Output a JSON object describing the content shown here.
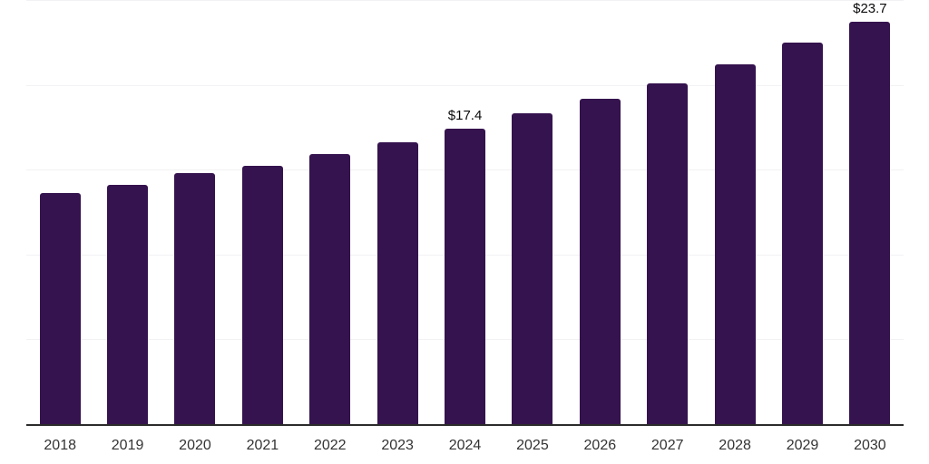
{
  "chart_data": {
    "type": "bar",
    "title": "",
    "xlabel": "",
    "ylabel": "",
    "categories": [
      "2018",
      "2019",
      "2020",
      "2021",
      "2022",
      "2023",
      "2024",
      "2025",
      "2026",
      "2027",
      "2028",
      "2029",
      "2030"
    ],
    "values": [
      13.6,
      14.1,
      14.8,
      15.2,
      15.9,
      16.6,
      17.4,
      18.3,
      19.2,
      20.1,
      21.2,
      22.5,
      23.7
    ],
    "data_labels": [
      "",
      "",
      "",
      "",
      "",
      "",
      "$17.4",
      "",
      "",
      "",
      "",
      "",
      "$23.7"
    ],
    "ylim": [
      0,
      25
    ],
    "grid_step": 5,
    "grid": true,
    "legend": false,
    "y_axis_labels_visible": false,
    "colors": {
      "bar": "#35134e",
      "grid": "#f2f2f4",
      "axis": "#2b2b2b",
      "data_label": "#0a0a0a",
      "tick_label": "#333333",
      "background": "#ffffff"
    }
  }
}
